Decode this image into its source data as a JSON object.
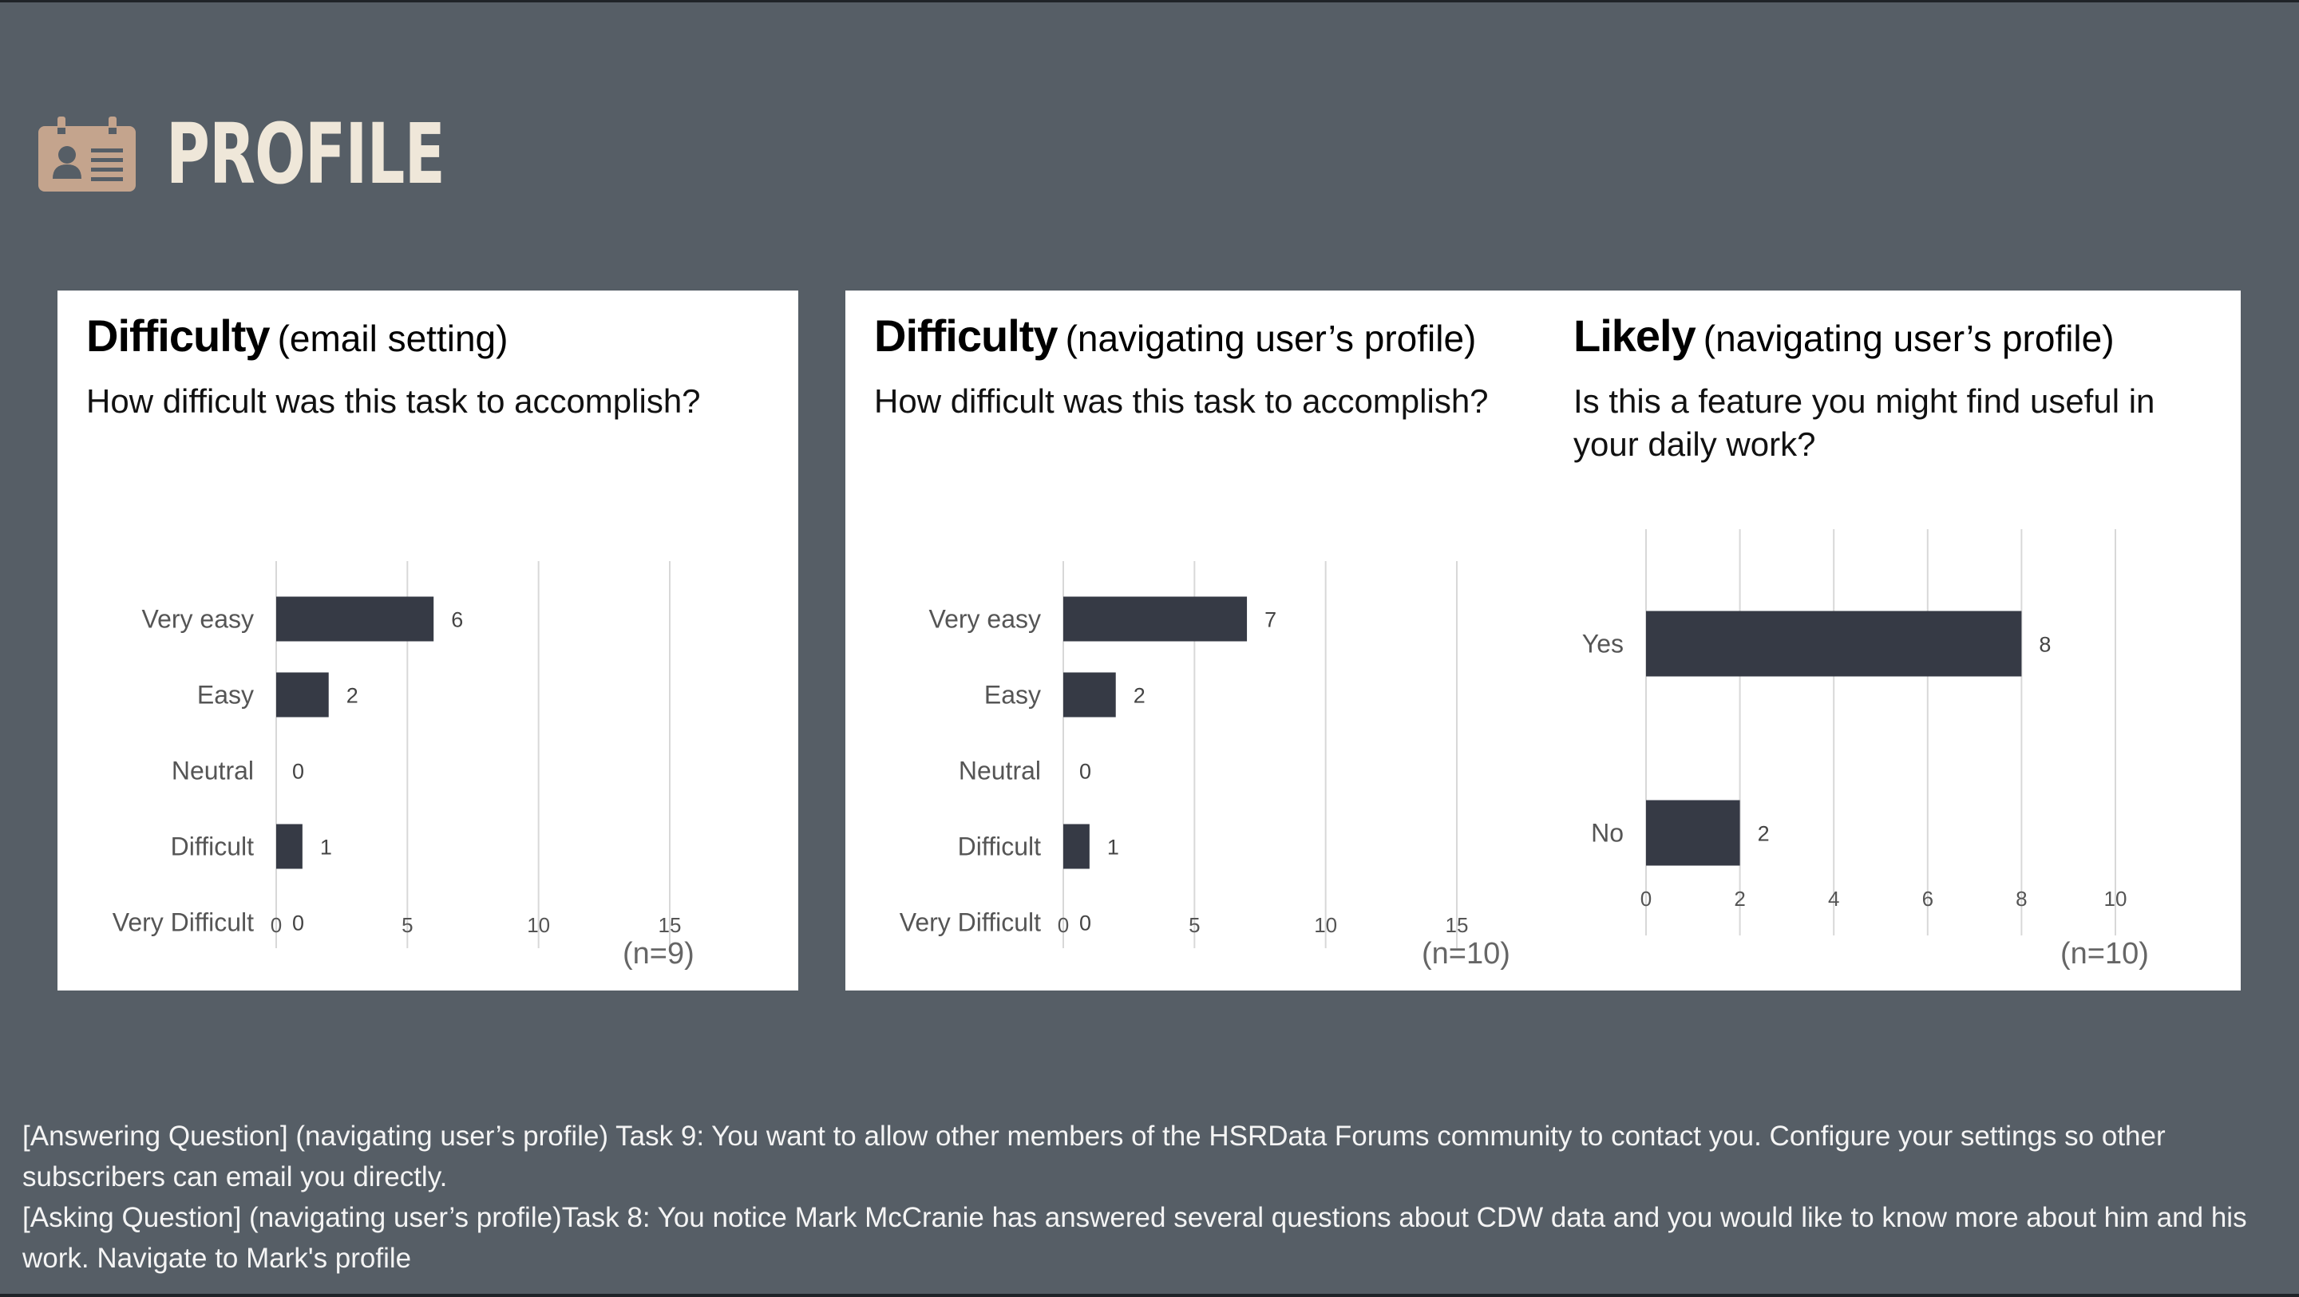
{
  "page": {
    "title": "PROFILE",
    "icon": "id-card-icon",
    "colors": {
      "background": "#565e66",
      "accent": "#c4a48d",
      "title": "#efe7d9",
      "bar": "#363a45"
    }
  },
  "chart_data": [
    {
      "type": "bar",
      "orientation": "horizontal",
      "title": "Difficulty",
      "subtitle": "(email setting)",
      "question": "How difficult was this task to accomplish?",
      "categories": [
        "Very easy",
        "Easy",
        "Neutral",
        "Difficult",
        "Very Difficult"
      ],
      "values": [
        6,
        2,
        0,
        1,
        0
      ],
      "xlim": [
        0,
        15
      ],
      "xticks": [
        0,
        5,
        10,
        15
      ],
      "grid": true,
      "n_label": "(n=9)"
    },
    {
      "type": "bar",
      "orientation": "horizontal",
      "title": "Difficulty",
      "subtitle": "(navigating user’s profile)",
      "question": "How difficult was this task to accomplish?",
      "categories": [
        "Very easy",
        "Easy",
        "Neutral",
        "Difficult",
        "Very Difficult"
      ],
      "values": [
        7,
        2,
        0,
        1,
        0
      ],
      "xlim": [
        0,
        15
      ],
      "xticks": [
        0,
        5,
        10,
        15
      ],
      "grid": true,
      "n_label": "(n=10)"
    },
    {
      "type": "bar",
      "orientation": "horizontal",
      "title": "Likely",
      "subtitle": "(navigating user’s profile)",
      "question": "Is this a feature you might find useful in your daily work?",
      "categories": [
        "Yes",
        "No"
      ],
      "values": [
        8,
        2
      ],
      "xlim": [
        0,
        10
      ],
      "xticks": [
        0,
        2,
        4,
        6,
        8,
        10
      ],
      "grid": true,
      "n_label": "(n=10)"
    }
  ],
  "notes": [
    "[Answering Question] (navigating user’s profile) Task 9: You want to allow other members of the HSRData Forums community to contact you. Configure your settings so other subscribers can email you directly.",
    "[Asking Question] (navigating user’s profile)Task 8: You notice Mark McCranie has answered several questions about CDW data and you would like to know more about him and his work. Navigate to Mark's profile"
  ]
}
